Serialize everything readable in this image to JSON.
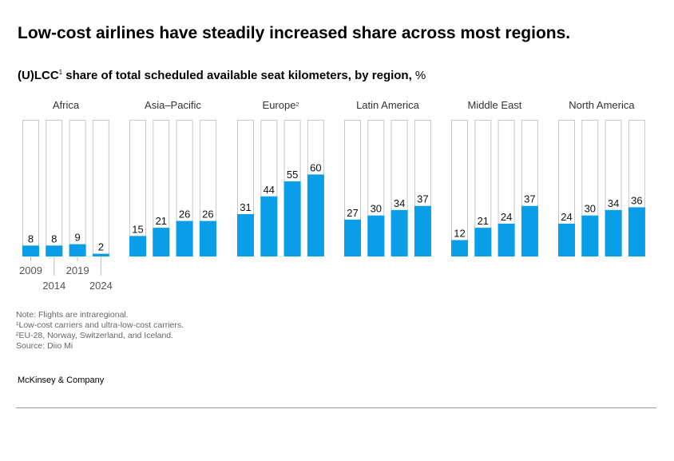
{
  "header": {
    "title": "Low-cost airlines have steadily increased share across most regions.",
    "subtitle_bold": "(U)LCC",
    "subtitle_sup": "1",
    "subtitle_rest": " share of total scheduled available seat kilometers, by region,",
    "subtitle_unit": " %"
  },
  "chart_data": {
    "type": "bar",
    "title": "(U)LCC share of total scheduled available seat kilometers, by region, %",
    "ylim": [
      0,
      100
    ],
    "x": [
      "2009",
      "2014",
      "2019",
      "2024"
    ],
    "colors": {
      "bar": "#0a9de8",
      "frame": "#c8c8c8"
    },
    "groups": [
      {
        "name": "Africa",
        "sup": "",
        "values": [
          8,
          8,
          9,
          2
        ]
      },
      {
        "name": "Asia–Pacific",
        "sup": "",
        "values": [
          15,
          21,
          26,
          26
        ]
      },
      {
        "name": "Europe",
        "sup": "2",
        "values": [
          31,
          44,
          55,
          60
        ]
      },
      {
        "name": "Latin America",
        "sup": "",
        "values": [
          27,
          30,
          34,
          37
        ]
      },
      {
        "name": "Middle East",
        "sup": "",
        "values": [
          12,
          21,
          24,
          37
        ]
      },
      {
        "name": "North America",
        "sup": "",
        "values": [
          24,
          30,
          34,
          36
        ]
      }
    ]
  },
  "notes": [
    "Note: Flights are intraregional.",
    "¹Low-cost carriers and ultra-low-cost carriers.",
    "²EU-28, Norway, Switzerland, and Iceland.",
    "Source: Diio Mi"
  ],
  "footer": {
    "brand": "McKinsey & Company"
  }
}
